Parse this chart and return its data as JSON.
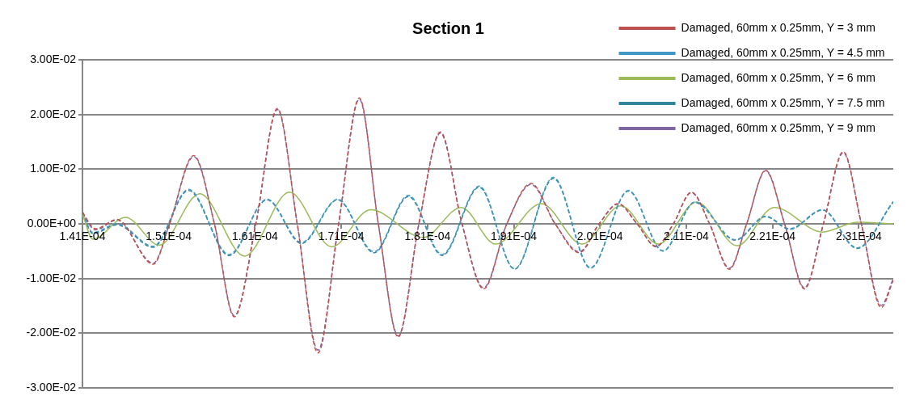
{
  "chart_data": {
    "type": "line",
    "title": "Section 1",
    "legend": "top right",
    "grid": "y",
    "marker": "none",
    "xlim": [
      0.000141,
      0.000235
    ],
    "xticks": [
      {
        "value": 0.000141,
        "label": "1.41E-04"
      },
      {
        "value": 0.000151,
        "label": "1.51E-04"
      },
      {
        "value": 0.000161,
        "label": "1.61E-04"
      },
      {
        "value": 0.000171,
        "label": "1.71E-04"
      },
      {
        "value": 0.000181,
        "label": "1.81E-04"
      },
      {
        "value": 0.000191,
        "label": "1.91E-04"
      },
      {
        "value": 0.000201,
        "label": "2.01E-04"
      },
      {
        "value": 0.000211,
        "label": "2.11E-04"
      },
      {
        "value": 0.000221,
        "label": "2.21E-04"
      },
      {
        "value": 0.000231,
        "label": "2.31E-04"
      }
    ],
    "ylim": [
      -0.03,
      0.03
    ],
    "yticks": [
      {
        "value": -0.03,
        "label": "-3.00E-02"
      },
      {
        "value": -0.02,
        "label": "-2.00E-02"
      },
      {
        "value": -0.01,
        "label": "-1.00E-02"
      },
      {
        "value": 0,
        "label": "0.00E+00"
      },
      {
        "value": 0.01,
        "label": "1.00E-02"
      },
      {
        "value": 0.02,
        "label": "2.00E-02"
      },
      {
        "value": 0.03,
        "label": "3.00E-02"
      }
    ],
    "series": [
      {
        "name": "Damaged, 60mm x 0.25mm, Y = 3 mm",
        "color": "#c0504d",
        "line_style": "dashed",
        "x": [
          0.000141,
          0.0001425,
          0.000145,
          0.0001492,
          0.0001511,
          0.0001539,
          0.0001563,
          0.0001586,
          0.0001611,
          0.0001636,
          0.0001659,
          0.0001683,
          0.0001707,
          0.0001731,
          0.0001753,
          0.0001776,
          0.00018,
          0.0001825,
          0.000185,
          0.0001875,
          0.0001902,
          0.000193,
          0.0001958,
          0.0001986,
          0.0002009,
          0.0002031,
          0.0002053,
          0.0002075,
          0.0002095,
          0.0002116,
          0.0002137,
          0.000216,
          0.000218,
          0.0002202,
          0.0002224,
          0.0002247,
          0.0002269,
          0.0002292,
          0.0002313,
          0.0002336,
          0.000235
        ],
        "values": [
          0.0021,
          -0.0009,
          0.0008,
          -0.0074,
          0,
          0.0125,
          0,
          -0.017,
          0,
          0.0211,
          0,
          -0.0236,
          0,
          0.023,
          0,
          -0.0207,
          0,
          0.0168,
          0,
          -0.0119,
          0,
          0.0074,
          0,
          -0.0053,
          0,
          0.0037,
          0,
          -0.0041,
          0,
          0.0058,
          0,
          -0.0083,
          0,
          0.0098,
          0,
          -0.0119,
          0,
          0.0132,
          0,
          -0.0153,
          -0.0103
        ]
      },
      {
        "name": "Damaged, 60mm x 0.25mm, Y = 4.5 mm",
        "color": "#4198c6",
        "line_style": "dashed",
        "x": [
          0.000141,
          0.0001422,
          0.000145,
          0.0001492,
          0.0001533,
          0.000158,
          0.0001624,
          0.0001664,
          0.0001706,
          0.0001748,
          0.0001788,
          0.0001827,
          0.000187,
          0.0001911,
          0.0001956,
          0.0001999,
          0.0002043,
          0.0002083,
          0.000212,
          0.0002167,
          0.0002202,
          0.000223,
          0.0002268,
          0.0002308,
          0.000235
        ],
        "values": [
          0.0022,
          -0.0016,
          0,
          -0.0041,
          0.0063,
          -0.0056,
          0.0045,
          -0.0034,
          0.0045,
          -0.0051,
          0.0052,
          -0.0056,
          0.0069,
          -0.0082,
          0.0085,
          -0.008,
          0.0061,
          -0.0049,
          0.004,
          -0.0029,
          0.0014,
          -0.0009,
          0.0026,
          -0.0044,
          0.0041
        ]
      },
      {
        "name": "Damaged, 60mm x 0.25mm, Y = 6 mm",
        "color": "#9bbb59",
        "line_style": "solid",
        "x": [
          0.000141,
          0.0001422,
          0.000146,
          0.0001499,
          0.0001546,
          0.0001598,
          0.000165,
          0.0001699,
          0.0001744,
          0.0001805,
          0.0001849,
          0.0001889,
          0.0001942,
          0.0001989,
          0.0002034,
          0.0002078,
          0.0002122,
          0.0002169,
          0.0002212,
          0.0002268,
          0.0002308,
          0.000235
        ],
        "values": [
          0.0018,
          -0.0028,
          0.0012,
          -0.0039,
          0.0055,
          -0.0059,
          0.0058,
          -0.0042,
          0.0026,
          -0.0025,
          0.003,
          -0.0037,
          0.0037,
          -0.0037,
          0.0033,
          -0.0037,
          0.004,
          -0.004,
          0.003,
          -0.0015,
          0.0003,
          0
        ]
      },
      {
        "name": "Damaged, 60mm x 0.25mm, Y = 7.5 mm",
        "color": "#31859c",
        "line_style": "dashed",
        "x": [
          0.000141,
          0.0001422,
          0.000145,
          0.0001492,
          0.0001533,
          0.000158,
          0.0001624,
          0.0001664,
          0.0001706,
          0.0001748,
          0.0001788,
          0.0001827,
          0.000187,
          0.0001911,
          0.0001956,
          0.0001999,
          0.0002043,
          0.0002083,
          0.000212,
          0.0002167,
          0.0002202,
          0.000223,
          0.0002268,
          0.0002308,
          0.000235
        ],
        "values": [
          0.002,
          -0.0018,
          -0.0002,
          -0.0043,
          0.0061,
          -0.0058,
          0.0044,
          -0.0036,
          0.0044,
          -0.0053,
          0.005,
          -0.0058,
          0.0067,
          -0.0083,
          0.0083,
          -0.0081,
          0.006,
          -0.005,
          0.0039,
          -0.003,
          0.0013,
          -0.001,
          0.0025,
          -0.0045,
          0.004
        ]
      },
      {
        "name": "Damaged, 60mm x 0.25mm, Y = 9 mm",
        "color": "#8064a2",
        "line_style": "dashed",
        "x": [
          0.000141,
          0.0001425,
          0.000145,
          0.0001492,
          0.0001511,
          0.0001539,
          0.0001563,
          0.0001586,
          0.0001611,
          0.0001636,
          0.0001659,
          0.0001683,
          0.0001707,
          0.0001731,
          0.0001753,
          0.0001776,
          0.00018,
          0.0001825,
          0.000185,
          0.0001875,
          0.0001902,
          0.000193,
          0.0001958,
          0.0001986,
          0.0002009,
          0.0002031,
          0.0002053,
          0.0002075,
          0.0002095,
          0.0002116,
          0.0002137,
          0.000216,
          0.000218,
          0.0002202,
          0.0002224,
          0.0002247,
          0.0002269,
          0.0002292,
          0.0002313,
          0.0002336,
          0.000235
        ],
        "values": [
          0.0019,
          -0.0011,
          0.0007,
          -0.0072,
          0,
          0.0123,
          0,
          -0.0168,
          0,
          0.0209,
          0,
          -0.0231,
          0,
          0.0228,
          0,
          -0.0205,
          0,
          0.0166,
          0,
          -0.0117,
          0,
          0.0072,
          0,
          -0.0051,
          0,
          0.0036,
          0,
          -0.0042,
          0,
          0.0057,
          0,
          -0.0081,
          0,
          0.0097,
          0,
          -0.0117,
          0,
          0.013,
          0,
          -0.0149,
          -0.01
        ]
      }
    ]
  }
}
